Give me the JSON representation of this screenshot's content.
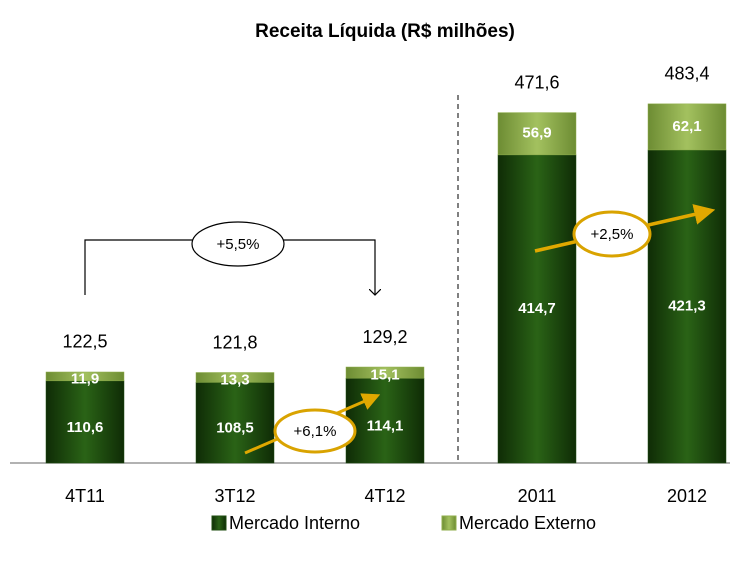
{
  "chart_data": {
    "type": "stacked_bar",
    "title": "Receita Líquida (R$ milhões)",
    "categories": [
      "4T11",
      "3T12",
      "4T12",
      "2011",
      "2012"
    ],
    "series": [
      {
        "name": "Mercado Interno",
        "color": "#1f4e10",
        "values": [
          110.6,
          108.5,
          114.1,
          414.7,
          421.3
        ],
        "value_labels": [
          "110,6",
          "108,5",
          "114,1",
          "414,7",
          "421,3"
        ]
      },
      {
        "name": "Mercado Externo",
        "color": "#8fae4b",
        "values": [
          11.9,
          13.3,
          15.1,
          56.9,
          62.1
        ],
        "value_labels": [
          "11,9",
          "13,3",
          "15,1",
          "56,9",
          "62,1"
        ]
      }
    ],
    "totals": [
      122.5,
      121.8,
      129.2,
      471.6,
      483.4
    ],
    "total_labels": [
      "122,5",
      "121,8",
      "129,2",
      "471,6",
      "483,4"
    ],
    "annotations": [
      "+5,5%",
      "+6,1%",
      "+2,5%"
    ],
    "legend": "bottom"
  }
}
